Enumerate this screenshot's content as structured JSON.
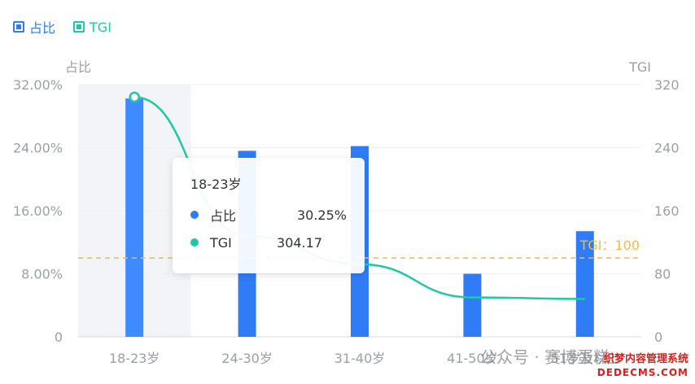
{
  "legend": {
    "items": [
      {
        "label": "占比",
        "color": "#2f7cf6"
      },
      {
        "label": "TGI",
        "color": "#1fc9a3"
      }
    ]
  },
  "chart_data": {
    "type": "bar",
    "categories": [
      "18-23岁",
      "24-30岁",
      "31-40岁",
      "41-50岁",
      "51岁及以上"
    ],
    "series": [
      {
        "name": "占比",
        "type": "bar",
        "axis": "left",
        "color": "#2f7cf6",
        "values": [
          30.25,
          23.6,
          24.2,
          8.0,
          13.4
        ]
      },
      {
        "name": "TGI",
        "type": "line",
        "axis": "right",
        "color": "#1fc9a3",
        "values": [
          304.17,
          128,
          92,
          50,
          48
        ]
      }
    ],
    "y_left": {
      "label": "占比",
      "ticks": [
        "0",
        "8.00%",
        "16.00%",
        "24.00%",
        "32.00%"
      ],
      "range": [
        0,
        32
      ]
    },
    "y_right": {
      "label": "TGI",
      "ticks": [
        "0",
        "80",
        "160",
        "240",
        "320"
      ],
      "range": [
        0,
        320
      ]
    },
    "reference_line": {
      "axis": "right",
      "value": 100,
      "label": "TGI：100",
      "color": "#f5b947"
    },
    "highlighted_category": 0,
    "grid": true
  },
  "tooltip": {
    "title": "18-23岁",
    "rows": [
      {
        "label": "占比",
        "value": "30.25%",
        "color": "#2f7cf6"
      },
      {
        "label": "TGI",
        "value": "304.17",
        "color": "#1fc9a3"
      }
    ]
  },
  "watermark": {
    "text": "公众号 · 赛博蛋糕",
    "logo_line1": "织梦内容管理系统",
    "logo_line2": "DEDECMS.COM"
  }
}
